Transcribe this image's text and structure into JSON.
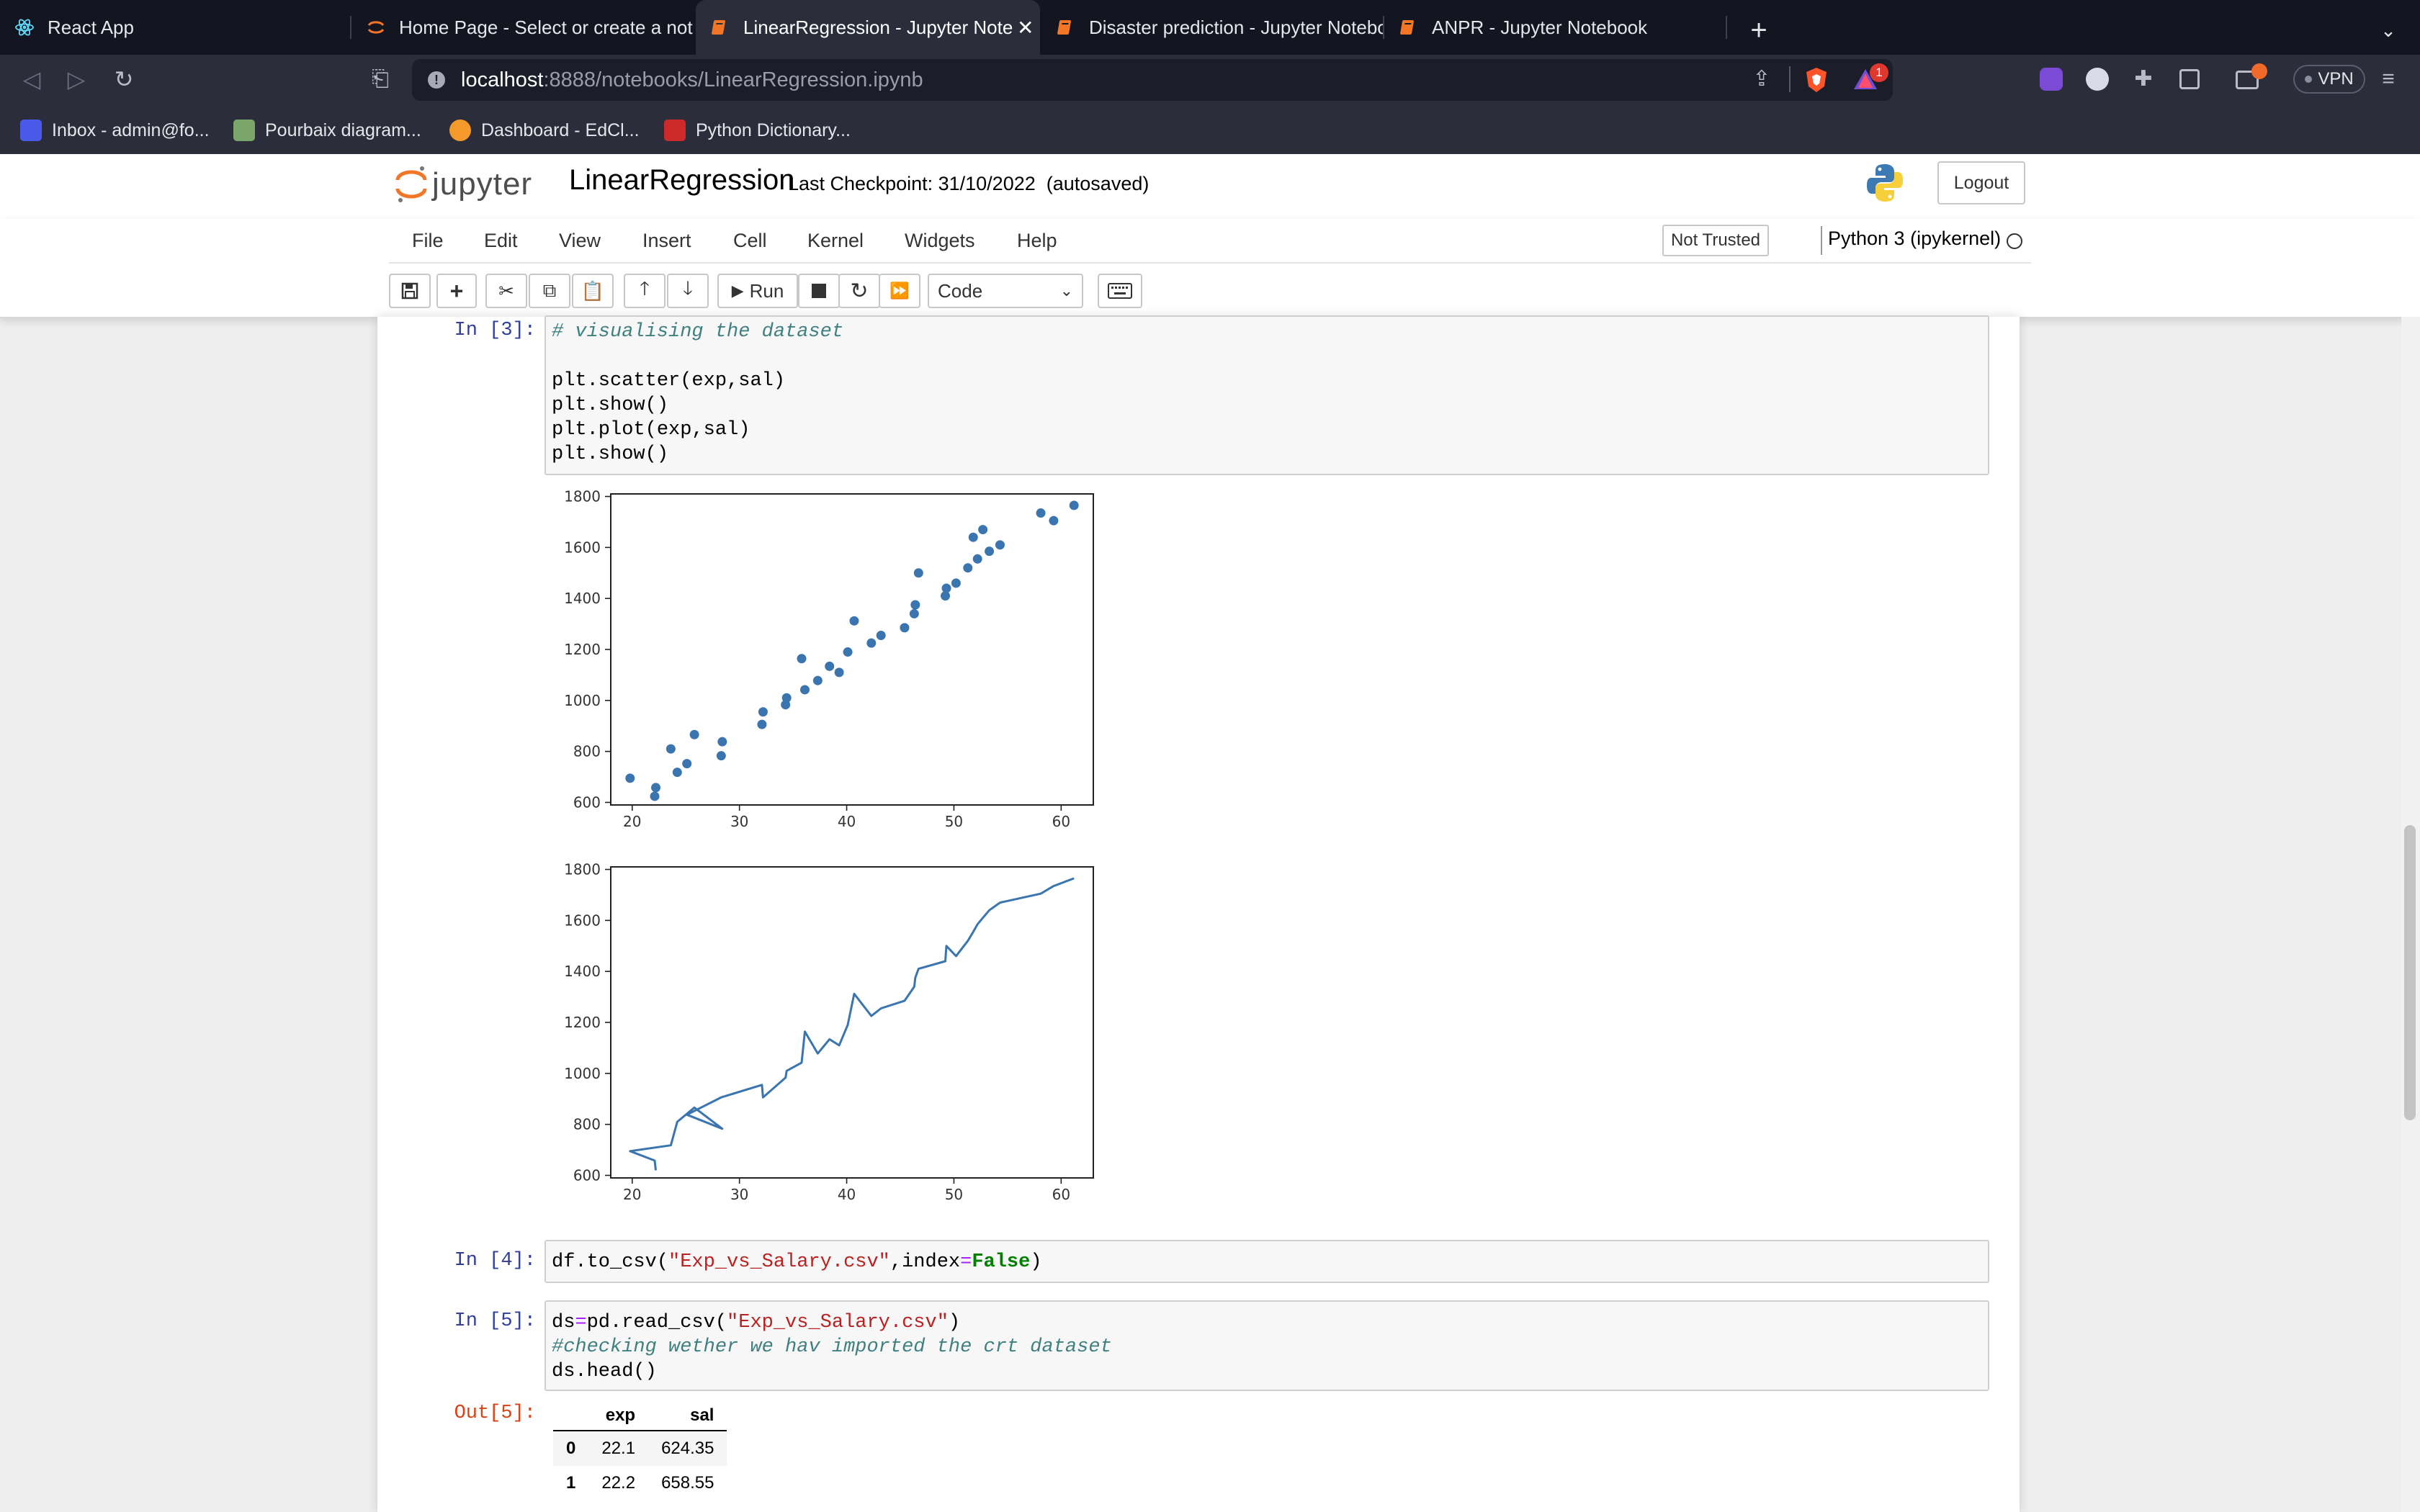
{
  "browser": {
    "tabs": [
      {
        "label": "React App",
        "icon": "react-icon",
        "color": "#61dafb"
      },
      {
        "label": "Home Page - Select or create a notebook",
        "icon": "jupyter-icon",
        "color": "#f37626"
      },
      {
        "label": "LinearRegression - Jupyter Notebook",
        "icon": "notebook-icon",
        "color": "#f37626",
        "active": true
      },
      {
        "label": "Disaster prediction - Jupyter Notebook",
        "icon": "notebook-icon",
        "color": "#f37626"
      },
      {
        "label": "ANPR - Jupyter Notebook",
        "icon": "notebook-icon",
        "color": "#f37626"
      }
    ],
    "url_host": "localhost",
    "url_rest": ":8888/notebooks/LinearRegression.ipynb",
    "brave_badge": "1",
    "vpn_label": "VPN",
    "bookmarks": [
      {
        "label": "Inbox - admin@fo...",
        "color": "#4a5ae8"
      },
      {
        "label": "Pourbaix diagram...",
        "color": "#7aa56b"
      },
      {
        "label": "Dashboard - EdCl...",
        "color": "#f39a2b"
      },
      {
        "label": "Python Dictionary...",
        "color": "#cc2a2a"
      }
    ]
  },
  "jupyter": {
    "logo_text": "jupyter",
    "notebook_name": "LinearRegression",
    "checkpoint": "Last Checkpoint: 31/10/2022",
    "autosave": "(autosaved)",
    "logout_label": "Logout",
    "menu": [
      "File",
      "Edit",
      "View",
      "Insert",
      "Cell",
      "Kernel",
      "Widgets",
      "Help"
    ],
    "trust_label": "Not Trusted",
    "kernel_label": "Python 3 (ipykernel)",
    "run_label": "Run",
    "cell_type": "Code"
  },
  "cells": {
    "c3": {
      "prompt": "In [3]:",
      "lines": [
        "# visualising the dataset",
        "",
        "plt.scatter(exp,sal)",
        "plt.show()",
        "plt.plot(exp,sal)",
        "plt.show()"
      ]
    },
    "c4": {
      "prompt": "In [4]:",
      "code_a": "df.to_csv(",
      "code_str": "\"Exp_vs_Salary.csv\"",
      "code_b": ",index",
      "code_eq": "=",
      "code_kw": "False",
      "code_c": ")"
    },
    "c5": {
      "prompt": "In [5]:",
      "l1_a": "ds",
      "l1_eq": "=",
      "l1_b": "pd.read_csv(",
      "l1_str": "\"Exp_vs_Salary.csv\"",
      "l1_c": ")",
      "l2": "#checking wether we hav imported the crt dataset",
      "l3": "ds.head()",
      "out_prompt": "Out[5]:"
    }
  },
  "table": {
    "columns": [
      "exp",
      "sal"
    ],
    "rows": [
      {
        "index": "0",
        "exp": "22.1",
        "sal": "624.35"
      },
      {
        "index": "1",
        "exp": "22.2",
        "sal": "658.55"
      }
    ]
  },
  "chart_data": [
    {
      "type": "scatter",
      "xlim": [
        18,
        63
      ],
      "ylim": [
        590,
        1810
      ],
      "xticks": [
        20,
        30,
        40,
        50,
        60
      ],
      "yticks": [
        600,
        800,
        1000,
        1200,
        1400,
        1600,
        1800
      ],
      "color": "#3a75b0",
      "x": [
        19.8,
        22.1,
        22.2,
        23.6,
        24.2,
        25.1,
        25.8,
        28.3,
        28.4,
        32.1,
        32.2,
        34.3,
        34.4,
        35.8,
        36.1,
        37.3,
        38.4,
        39.3,
        40.1,
        40.7,
        42.3,
        43.2,
        45.4,
        46.3,
        46.4,
        46.7,
        49.2,
        49.3,
        50.2,
        51.3,
        51.8,
        52.2,
        52.7,
        53.3,
        54.3,
        58.1,
        59.3,
        61.2
      ],
      "y": [
        695,
        624,
        658,
        810,
        718,
        752,
        866,
        783,
        838,
        906,
        955,
        983,
        1010,
        1164,
        1042,
        1078,
        1134,
        1110,
        1190,
        1312,
        1225,
        1255,
        1285,
        1340,
        1375,
        1500,
        1410,
        1440,
        1460,
        1520,
        1640,
        1555,
        1670,
        1585,
        1610,
        1735,
        1705,
        1765
      ]
    },
    {
      "type": "line",
      "xlim": [
        18,
        63
      ],
      "ylim": [
        590,
        1810
      ],
      "xticks": [
        20,
        30,
        40,
        50,
        60
      ],
      "yticks": [
        600,
        800,
        1000,
        1200,
        1400,
        1600,
        1800
      ],
      "color": "#3a75b0",
      "x": [
        22.2,
        22.1,
        19.8,
        23.6,
        24.2,
        25.8,
        28.4,
        25.1,
        28.3,
        32.1,
        32.2,
        34.3,
        34.4,
        35.8,
        36.1,
        37.3,
        38.4,
        39.3,
        40.1,
        40.7,
        42.3,
        43.2,
        45.4,
        46.3,
        46.4,
        46.7,
        49.2,
        49.3,
        50.2,
        51.3,
        51.8,
        52.2,
        52.7,
        53.3,
        54.3,
        58.1,
        59.3,
        61.2
      ],
      "y": [
        620,
        658,
        695,
        718,
        810,
        866,
        783,
        838,
        906,
        955,
        906,
        983,
        1010,
        1042,
        1164,
        1078,
        1134,
        1110,
        1190,
        1312,
        1225,
        1255,
        1285,
        1340,
        1375,
        1410,
        1440,
        1500,
        1460,
        1520,
        1555,
        1585,
        1610,
        1640,
        1670,
        1705,
        1735,
        1765
      ]
    }
  ]
}
